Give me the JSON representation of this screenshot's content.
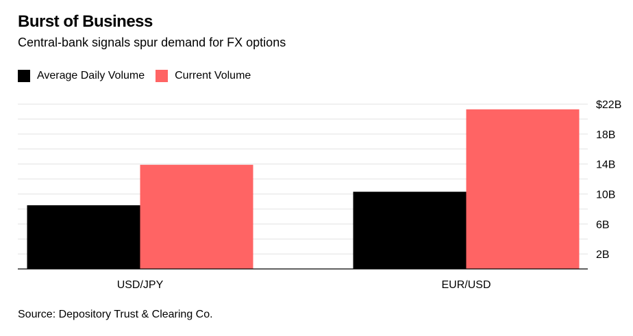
{
  "header": {
    "title": "Burst of Business",
    "subtitle": "Central-bank signals spur demand for FX options"
  },
  "legend": {
    "items": [
      {
        "label": "Average Daily Volume",
        "color": "#000000"
      },
      {
        "label": "Current Volume",
        "color": "#ff6464"
      }
    ]
  },
  "footer": {
    "source": "Source: Depository Trust & Clearing Co."
  },
  "chart_data": {
    "type": "bar",
    "title": "Burst of Business",
    "subtitle": "Central-bank signals spur demand for FX options",
    "categories": [
      "USD/JPY",
      "EUR/USD"
    ],
    "series": [
      {
        "name": "Average Daily Volume",
        "color": "#000000",
        "values": [
          8.5,
          10.3
        ]
      },
      {
        "name": "Current Volume",
        "color": "#ff6464",
        "values": [
          13.9,
          21.3
        ]
      }
    ],
    "ylim": [
      0,
      22
    ],
    "yticks": [
      2,
      6,
      10,
      14,
      18,
      22
    ],
    "ytick_labels": [
      "2B",
      "6B",
      "10B",
      "14B",
      "18B",
      "$22B"
    ],
    "grid": true,
    "legend_position": "top-left",
    "axis_position": "right"
  }
}
